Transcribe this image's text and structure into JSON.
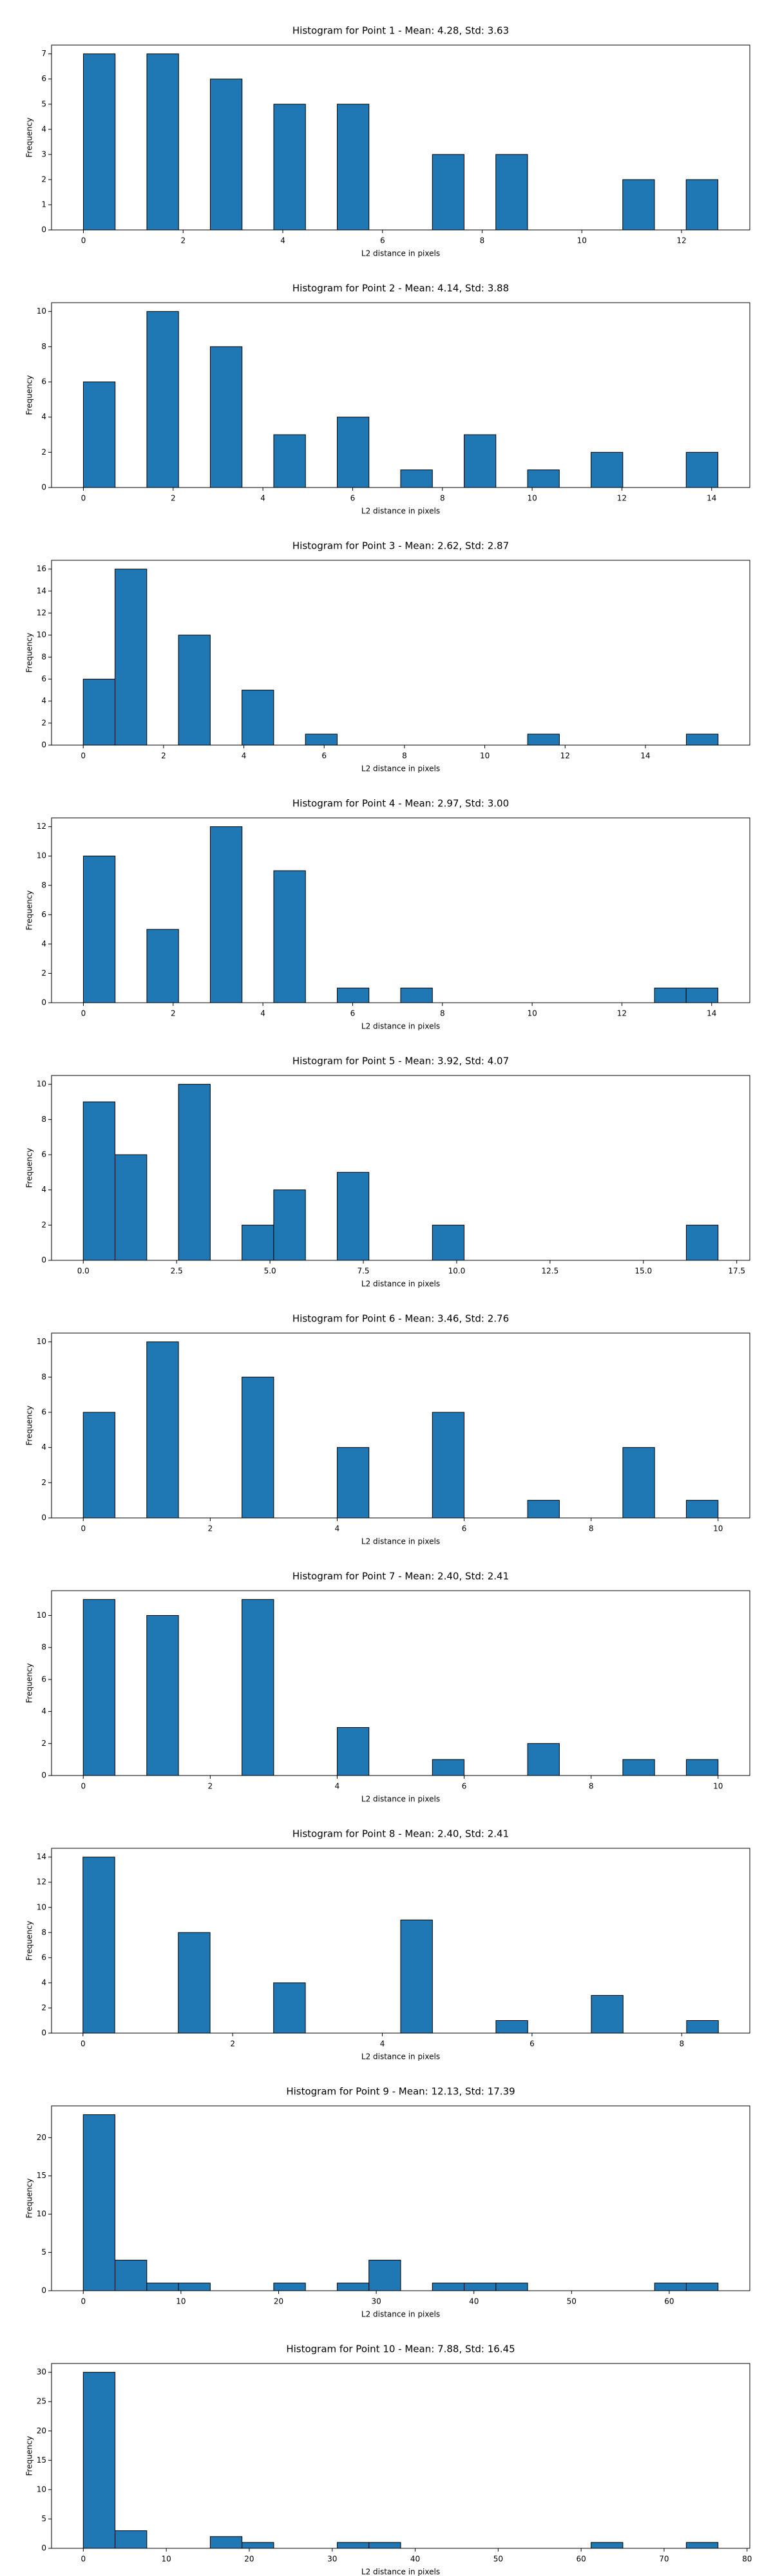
{
  "chart_data": [
    {
      "type": "histogram",
      "title": "Histogram for Point 1 - Mean: 4.28, Std: 3.63",
      "xlabel": "L2 distance in pixels",
      "ylabel": "Frequency",
      "color": "#1f77b4",
      "edgecolor": "#000000",
      "bins": [
        0,
        0.6365,
        1.273,
        1.9095,
        2.546,
        3.1825,
        3.819,
        4.4555,
        5.092,
        5.7285,
        6.365,
        7.0015,
        7.638,
        8.2745,
        8.911,
        9.5475,
        10.184,
        10.8205,
        11.457,
        12.0935,
        12.73
      ],
      "counts": [
        7,
        0,
        7,
        0,
        6,
        0,
        5,
        0,
        5,
        0,
        0,
        3,
        0,
        3,
        0,
        0,
        0,
        2,
        0,
        2
      ],
      "xlim": [
        -0.64,
        13.37
      ],
      "ylim": [
        0,
        7.35
      ],
      "xticks": [
        0,
        2,
        4,
        6,
        8,
        10,
        12
      ],
      "yticks": [
        0,
        1,
        2,
        3,
        4,
        5,
        6,
        7
      ]
    },
    {
      "type": "histogram",
      "title": "Histogram for Point 2 - Mean: 4.14, Std: 3.88",
      "xlabel": "L2 distance in pixels",
      "ylabel": "Frequency",
      "color": "#1f77b4",
      "edgecolor": "#000000",
      "bins": [
        0,
        0.707,
        1.414,
        2.121,
        2.828,
        3.535,
        4.242,
        4.949,
        5.656,
        6.363,
        7.07,
        7.777,
        8.484,
        9.191,
        9.898,
        10.605,
        11.312,
        12.019,
        12.726,
        13.433,
        14.14
      ],
      "counts": [
        6,
        0,
        10,
        0,
        8,
        0,
        3,
        0,
        4,
        0,
        1,
        0,
        3,
        0,
        1,
        0,
        2,
        0,
        0,
        2
      ],
      "xlim": [
        -0.71,
        14.85
      ],
      "ylim": [
        0,
        10.5
      ],
      "xticks": [
        0,
        2,
        4,
        6,
        8,
        10,
        12,
        14
      ],
      "yticks": [
        0,
        2,
        4,
        6,
        8,
        10
      ]
    },
    {
      "type": "histogram",
      "title": "Histogram for Point 3 - Mean: 2.62, Std: 2.87",
      "xlabel": "L2 distance in pixels",
      "ylabel": "Frequency",
      "color": "#1f77b4",
      "edgecolor": "#000000",
      "bins": [
        0,
        0.7905,
        1.581,
        2.3715,
        3.162,
        3.9525,
        4.743,
        5.5335,
        6.324,
        7.1145,
        7.905,
        8.6955,
        9.486,
        10.2765,
        11.067,
        11.8575,
        12.648,
        13.4385,
        14.229,
        15.0195,
        15.81
      ],
      "counts": [
        6,
        16,
        0,
        10,
        0,
        5,
        0,
        1,
        0,
        0,
        0,
        0,
        0,
        0,
        1,
        0,
        0,
        0,
        0,
        1
      ],
      "xlim": [
        -0.79,
        16.6
      ],
      "ylim": [
        0,
        16.8
      ],
      "xticks": [
        0,
        2,
        4,
        6,
        8,
        10,
        12,
        14
      ],
      "yticks": [
        0,
        2,
        4,
        6,
        8,
        10,
        12,
        14,
        16
      ]
    },
    {
      "type": "histogram",
      "title": "Histogram for Point 4 - Mean: 2.97, Std: 3.00",
      "xlabel": "L2 distance in pixels",
      "ylabel": "Frequency",
      "color": "#1f77b4",
      "edgecolor": "#000000",
      "bins": [
        0,
        0.707,
        1.414,
        2.121,
        2.828,
        3.535,
        4.242,
        4.949,
        5.656,
        6.363,
        7.07,
        7.777,
        8.484,
        9.191,
        9.898,
        10.605,
        11.312,
        12.019,
        12.726,
        13.433,
        14.14
      ],
      "counts": [
        10,
        0,
        5,
        0,
        12,
        0,
        9,
        0,
        1,
        0,
        1,
        0,
        0,
        0,
        0,
        0,
        0,
        0,
        1,
        1
      ],
      "xlim": [
        -0.71,
        14.85
      ],
      "ylim": [
        0,
        12.6
      ],
      "xticks": [
        0,
        2,
        4,
        6,
        8,
        10,
        12,
        14
      ],
      "yticks": [
        0,
        2,
        4,
        6,
        8,
        10,
        12
      ]
    },
    {
      "type": "histogram",
      "title": "Histogram for Point 5 - Mean: 3.92, Std: 4.07",
      "xlabel": "L2 distance in pixels",
      "ylabel": "Frequency",
      "color": "#1f77b4",
      "edgecolor": "#000000",
      "bins": [
        0,
        0.85,
        1.7,
        2.55,
        3.4,
        4.25,
        5.1,
        5.95,
        6.8,
        7.65,
        8.5,
        9.35,
        10.2,
        11.05,
        11.9,
        12.75,
        13.6,
        14.45,
        15.3,
        16.15,
        17
      ],
      "counts": [
        9,
        6,
        0,
        10,
        0,
        2,
        4,
        0,
        5,
        0,
        0,
        2,
        0,
        0,
        0,
        0,
        0,
        0,
        0,
        2
      ],
      "xlim": [
        -0.85,
        17.85
      ],
      "ylim": [
        0,
        10.5
      ],
      "xticks": [
        {
          "value": 0,
          "label": "0.0"
        },
        2.5,
        {
          "value": 5,
          "label": "5.0"
        },
        7.5,
        {
          "value": 10,
          "label": "10.0"
        },
        12.5,
        {
          "value": 15,
          "label": "15.0"
        },
        17.5
      ],
      "yticks": [
        0,
        2,
        4,
        6,
        8,
        10
      ]
    },
    {
      "type": "histogram",
      "title": "Histogram for Point 6 - Mean: 3.46, Std: 2.76",
      "xlabel": "L2 distance in pixels",
      "ylabel": "Frequency",
      "color": "#1f77b4",
      "edgecolor": "#000000",
      "bins": [
        0,
        0.5,
        1,
        1.5,
        2,
        2.5,
        3,
        3.5,
        4,
        4.5,
        5,
        5.5,
        6,
        6.5,
        7,
        7.5,
        8,
        8.5,
        9,
        9.5,
        10
      ],
      "counts": [
        6,
        0,
        10,
        0,
        0,
        8,
        0,
        0,
        4,
        0,
        0,
        6,
        0,
        0,
        1,
        0,
        0,
        4,
        0,
        1
      ],
      "xlim": [
        -0.5,
        10.5
      ],
      "ylim": [
        0,
        10.5
      ],
      "xticks": [
        0,
        2,
        4,
        6,
        8,
        10
      ],
      "yticks": [
        0,
        2,
        4,
        6,
        8,
        10
      ]
    },
    {
      "type": "histogram",
      "title": "Histogram for Point 7 - Mean: 2.40, Std: 2.41",
      "xlabel": "L2 distance in pixels",
      "ylabel": "Frequency",
      "color": "#1f77b4",
      "edgecolor": "#000000",
      "bins": [
        0,
        0.5,
        1,
        1.5,
        2,
        2.5,
        3,
        3.5,
        4,
        4.5,
        5,
        5.5,
        6,
        6.5,
        7,
        7.5,
        8,
        8.5,
        9,
        9.5,
        10
      ],
      "counts": [
        11,
        0,
        10,
        0,
        0,
        11,
        0,
        0,
        3,
        0,
        0,
        1,
        0,
        0,
        2,
        0,
        0,
        1,
        0,
        1
      ],
      "xlim": [
        -0.5,
        10.5
      ],
      "ylim": [
        0,
        11.55
      ],
      "xticks": [
        0,
        2,
        4,
        6,
        8,
        10
      ],
      "yticks": [
        0,
        2,
        4,
        6,
        8,
        10
      ]
    },
    {
      "type": "histogram",
      "title": "Histogram for Point 8 - Mean: 2.40, Std: 2.41",
      "xlabel": "L2 distance in pixels",
      "ylabel": "Frequency",
      "color": "#1f77b4",
      "edgecolor": "#000000",
      "bins": [
        0,
        0.4245,
        0.849,
        1.2735,
        1.698,
        2.1225,
        2.547,
        2.9715,
        3.396,
        3.8205,
        4.245,
        4.6695,
        5.094,
        5.5185,
        5.943,
        6.3675,
        6.792,
        7.2165,
        7.641,
        8.0655,
        8.49
      ],
      "counts": [
        14,
        0,
        0,
        8,
        0,
        0,
        4,
        0,
        0,
        0,
        9,
        0,
        0,
        1,
        0,
        0,
        3,
        0,
        0,
        1
      ],
      "xlim": [
        -0.42,
        8.91
      ],
      "ylim": [
        0,
        14.7
      ],
      "xticks": [
        0,
        2,
        4,
        6,
        8
      ],
      "yticks": [
        0,
        2,
        4,
        6,
        8,
        10,
        12,
        14
      ]
    },
    {
      "type": "histogram",
      "title": "Histogram for Point 9 - Mean: 12.13, Std: 17.39",
      "xlabel": "L2 distance in pixels",
      "ylabel": "Frequency",
      "color": "#1f77b4",
      "edgecolor": "#000000",
      "bins": [
        0,
        3.25,
        6.5,
        9.75,
        13,
        16.25,
        19.5,
        22.75,
        26,
        29.25,
        32.5,
        35.75,
        39,
        42.25,
        45.5,
        48.75,
        52,
        55.25,
        58.5,
        61.75,
        65
      ],
      "counts": [
        23,
        4,
        1,
        1,
        0,
        0,
        1,
        0,
        1,
        4,
        0,
        1,
        1,
        1,
        0,
        0,
        0,
        0,
        1,
        1
      ],
      "xlim": [
        -3.25,
        68.25
      ],
      "ylim": [
        0,
        24.15
      ],
      "xticks": [
        0,
        10,
        20,
        30,
        40,
        50,
        60
      ],
      "yticks": [
        0,
        5,
        10,
        15,
        20
      ]
    },
    {
      "type": "histogram",
      "title": "Histogram for Point 10 - Mean: 7.88, Std: 16.45",
      "xlabel": "L2 distance in pixels",
      "ylabel": "Frequency",
      "color": "#1f77b4",
      "edgecolor": "#000000",
      "bins": [
        0,
        3.825,
        7.65,
        11.475,
        15.3,
        19.125,
        22.95,
        26.775,
        30.6,
        34.425,
        38.25,
        42.075,
        45.9,
        49.725,
        53.55,
        57.375,
        61.2,
        65.025,
        68.85,
        72.675,
        76.5
      ],
      "counts": [
        30,
        3,
        0,
        0,
        2,
        1,
        0,
        0,
        1,
        1,
        0,
        0,
        0,
        0,
        0,
        0,
        1,
        0,
        0,
        1
      ],
      "xlim": [
        -3.83,
        80.33
      ],
      "ylim": [
        0,
        31.5
      ],
      "xticks": [
        0,
        10,
        20,
        30,
        40,
        50,
        60,
        70,
        80
      ],
      "yticks": [
        0,
        5,
        10,
        15,
        20,
        25,
        30
      ]
    }
  ]
}
